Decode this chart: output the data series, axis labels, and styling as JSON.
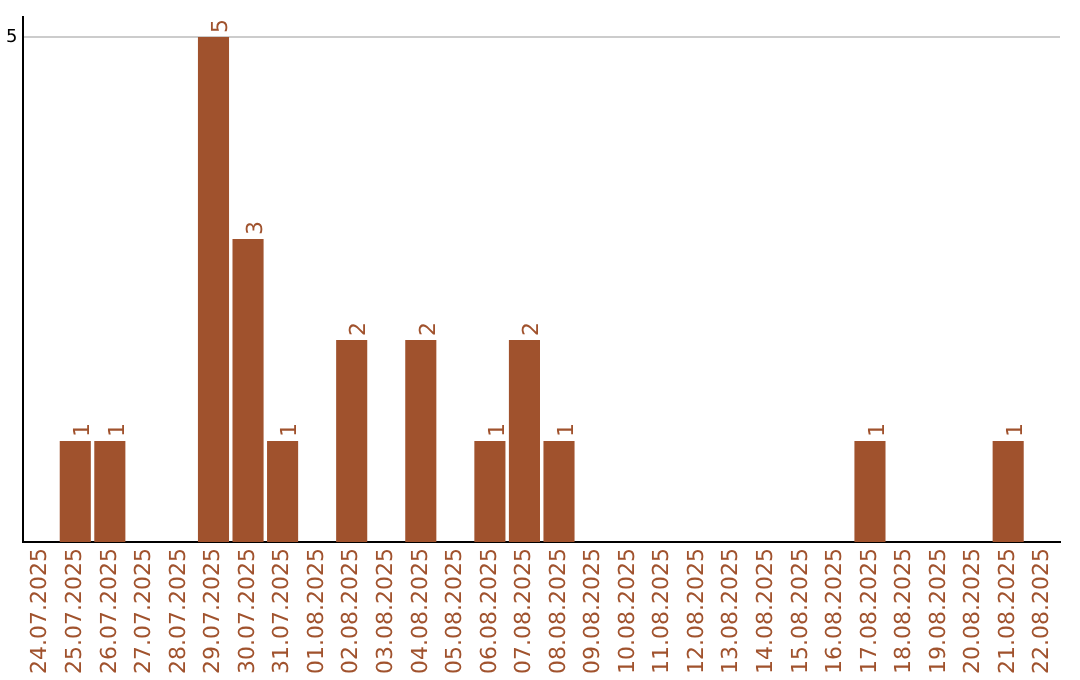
{
  "chart_data": {
    "type": "bar",
    "categories": [
      "24.07.2025",
      "25.07.2025",
      "26.07.2025",
      "27.07.2025",
      "28.07.2025",
      "29.07.2025",
      "30.07.2025",
      "31.07.2025",
      "01.08.2025",
      "02.08.2025",
      "03.08.2025",
      "04.08.2025",
      "05.08.2025",
      "06.08.2025",
      "07.08.2025",
      "08.08.2025",
      "09.08.2025",
      "10.08.2025",
      "11.08.2025",
      "12.08.2025",
      "13.08.2025",
      "14.08.2025",
      "15.08.2025",
      "16.08.2025",
      "17.08.2025",
      "18.08.2025",
      "19.08.2025",
      "20.08.2025",
      "21.08.2025",
      "22.08.2025"
    ],
    "values": [
      0,
      1,
      1,
      0,
      0,
      5,
      3,
      1,
      0,
      2,
      0,
      2,
      0,
      1,
      2,
      1,
      0,
      0,
      0,
      0,
      0,
      0,
      0,
      0,
      1,
      0,
      0,
      0,
      1,
      0
    ],
    "value_labels": [
      null,
      "1",
      "1",
      null,
      null,
      "5",
      "3",
      "1",
      null,
      "2",
      null,
      "2",
      null,
      "1",
      "2",
      "1",
      null,
      null,
      null,
      null,
      null,
      null,
      null,
      null,
      "1",
      null,
      null,
      null,
      "1",
      null
    ],
    "color": "#a0522d",
    "ylim": [
      0,
      5.2
    ],
    "yticks": [
      5
    ],
    "grid": "y",
    "legend": false
  }
}
